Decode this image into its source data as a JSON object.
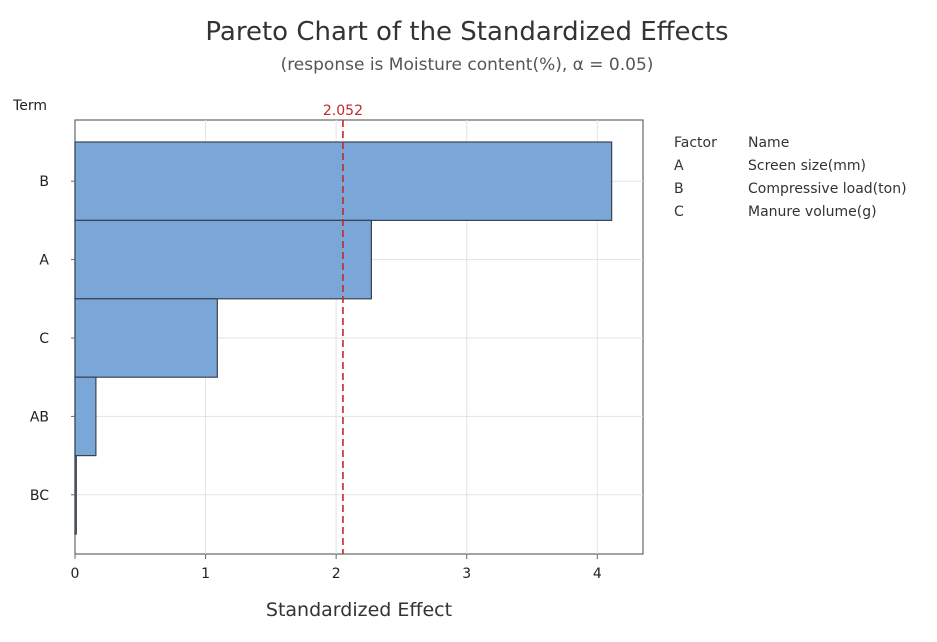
{
  "chart_data": {
    "type": "bar",
    "orientation": "horizontal",
    "title": "Pareto Chart of the Standardized Effects",
    "subtitle": "(response is Moisture content(%), α = 0.05)",
    "xlabel": "Standardized Effect",
    "ylabel": "Term",
    "categories": [
      "B",
      "A",
      "C",
      "AB",
      "BC"
    ],
    "values": [
      4.11,
      2.27,
      1.09,
      0.16,
      0.01
    ],
    "xlim": [
      0,
      4.35
    ],
    "xticks": [
      "0",
      "1",
      "2",
      "3",
      "4"
    ],
    "reference_line": {
      "value": 2.052,
      "label": "2.052",
      "color": "#c0282d"
    },
    "grid": true,
    "bar_color": "#7ba6d8",
    "bar_edge_color": "#3c4350",
    "legend": {
      "position": "right",
      "headers": {
        "factor": "Factor",
        "name": "Name"
      },
      "entries": [
        {
          "factor": "A",
          "name": "Screen size(mm)"
        },
        {
          "factor": "B",
          "name": "Compressive load(ton)"
        },
        {
          "factor": "C",
          "name": "Manure volume(g)"
        }
      ]
    }
  }
}
